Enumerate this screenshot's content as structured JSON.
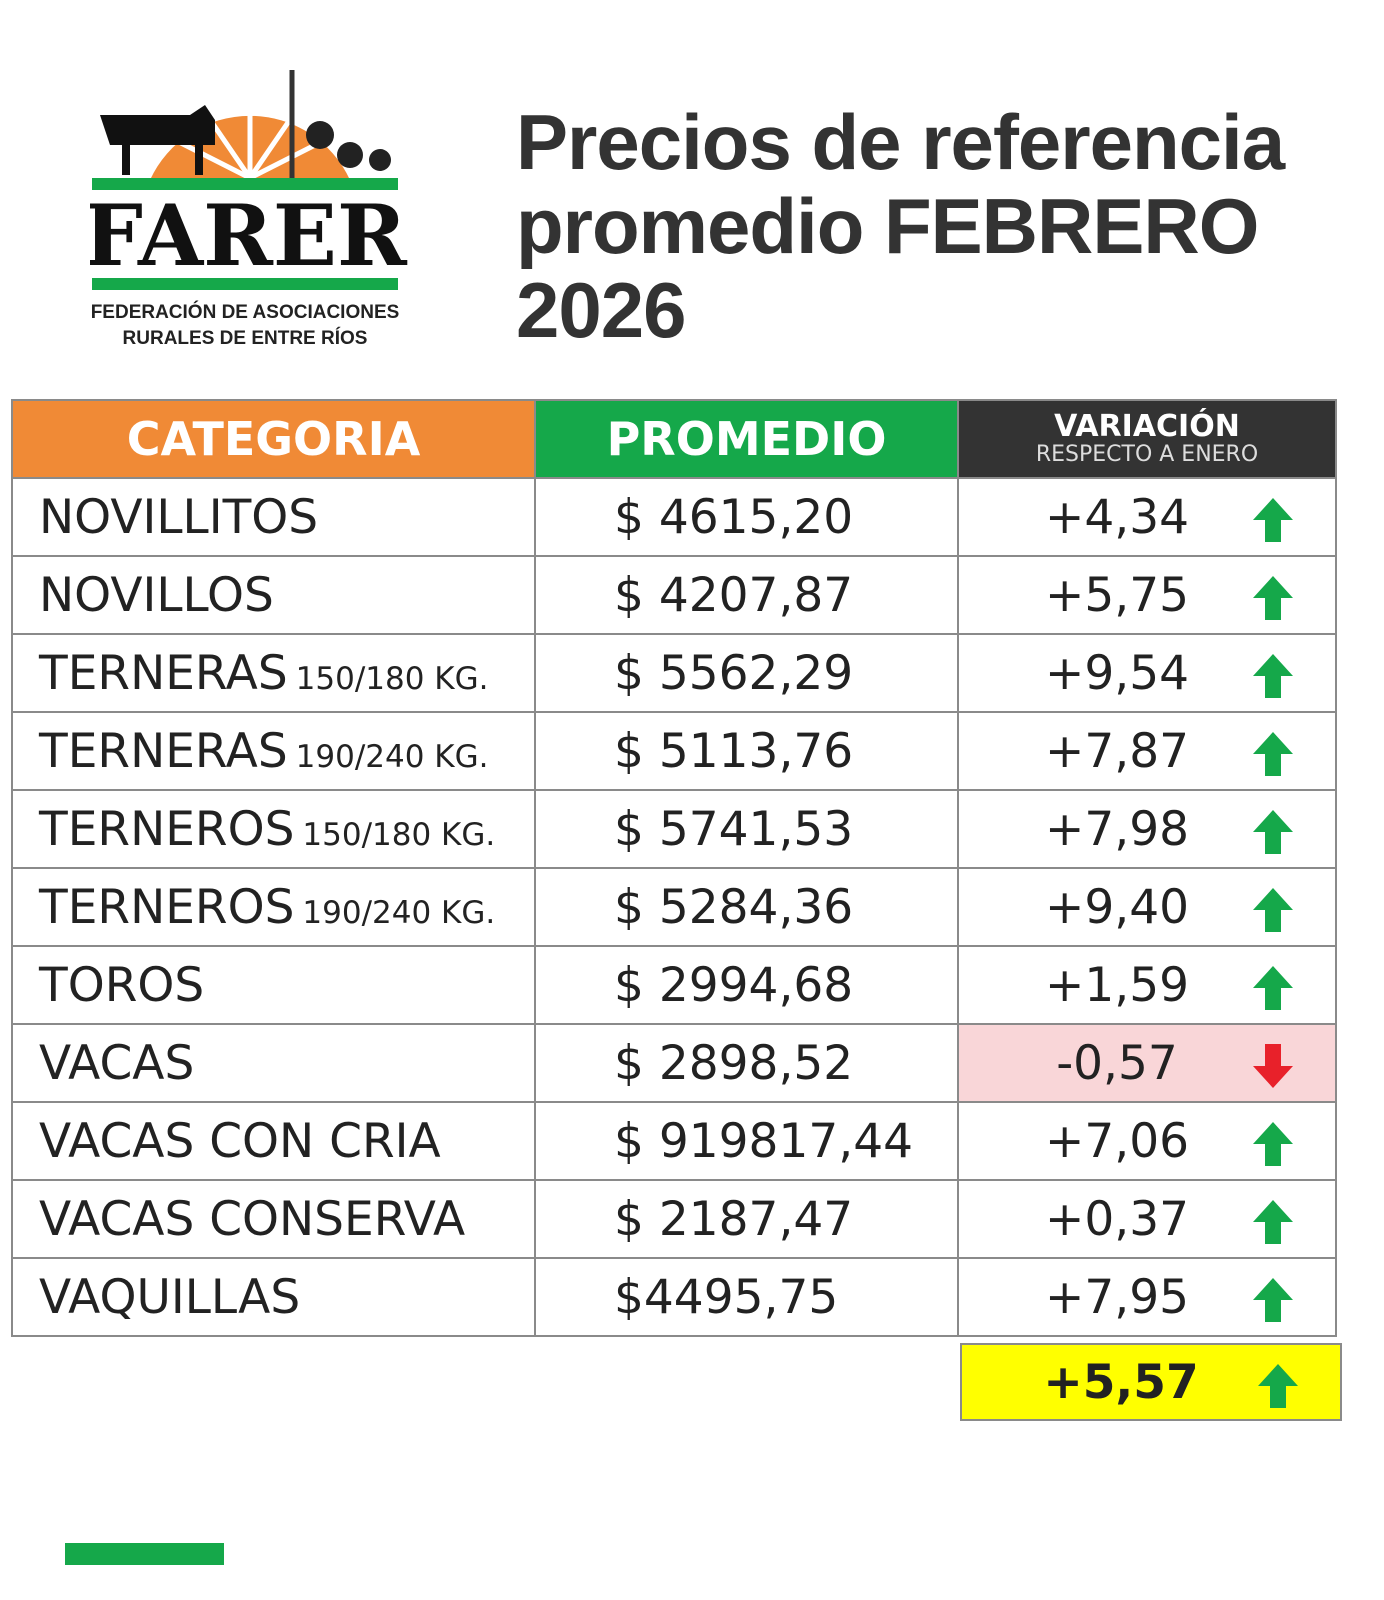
{
  "logo": {
    "name": "FARER",
    "subtitle": [
      "FEDERACIÓN DE ASOCIACIONES",
      "RURALES DE ENTRE RÍOS"
    ]
  },
  "title": [
    "Precios de referencia",
    "promedio FEBRERO",
    "2026"
  ],
  "table": {
    "header": {
      "category": "CATEGORIA",
      "price": "PROMEDIO",
      "variation": "VARIACIÓN",
      "variation_note": "RESPECTO A  ENERO"
    },
    "rows": [
      {
        "category": "NOVILLITOS",
        "price": "$ 4615,20",
        "variation": "+4,34"
      },
      {
        "category": "NOVILLOS",
        "price": "$ 4207,87",
        "variation": "+5,75"
      },
      {
        "category": "TERNERAS",
        "detail": "150/180 KG.",
        "price": "$ 5562,29",
        "variation": "+9,54"
      },
      {
        "category": "TERNERAS",
        "detail": "190/240 KG.",
        "price": "$ 5113,76",
        "variation": "+7,87"
      },
      {
        "category": "TERNEROS",
        "detail": "150/180 KG.",
        "price": "$ 5741,53",
        "variation": "+7,98"
      },
      {
        "category": "TERNEROS",
        "detail": "190/240 KG.",
        "price": "$ 5284,36",
        "variation": "+9,40"
      },
      {
        "category": "TOROS",
        "price": "$ 2994,68",
        "variation": "+1,59"
      },
      {
        "category": "VACAS",
        "price": "$ 2898,52",
        "variation": "-0,57"
      },
      {
        "category": "VACAS CON CRIA",
        "price": "$ 919817,44",
        "variation": "+7,06"
      },
      {
        "category": "VACAS CONSERVA",
        "price": "$ 2187,47",
        "variation": "+0,37"
      },
      {
        "category": "VAQUILLAS",
        "price": "$4495,75",
        "variation": "+7,95"
      }
    ],
    "total": "+5,57"
  }
}
